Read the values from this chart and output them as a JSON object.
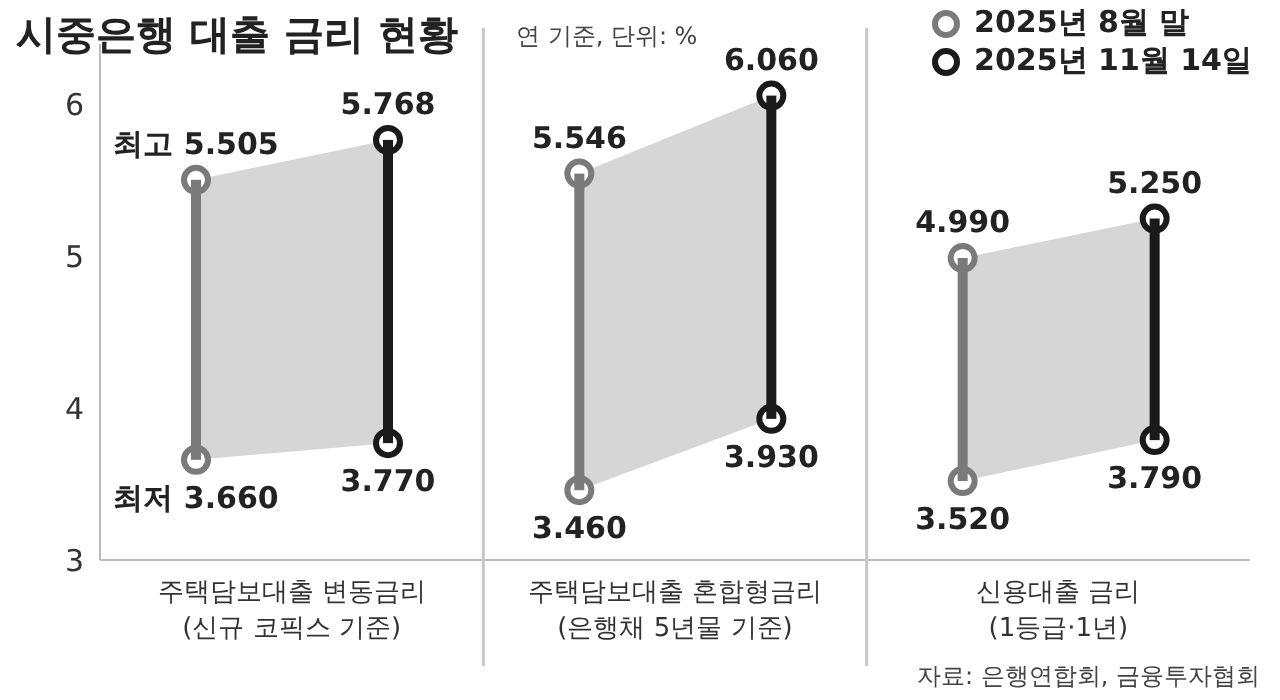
{
  "chart_data": {
    "type": "bar",
    "title": "시중은행 대출 금리 현황",
    "subtitle": "연 기준, 단위: %",
    "categories": [
      "주택담보대출 변동금리\n(신규 코픽스 기준)",
      "주택담보대출 혼합형금리\n(은행채 5년물 기준)",
      "신용대출 금리\n(1등급·1년)"
    ],
    "series": [
      {
        "name": "2025년 8월 말",
        "color": "#7a7a7a",
        "base": [
          3.66,
          3.46,
          3.52
        ],
        "values": [
          1.845,
          2.086,
          1.47
        ]
      },
      {
        "name": "2025년 11월 14일",
        "color": "#1a1a1a",
        "base": [
          3.77,
          3.93,
          3.79
        ],
        "values": [
          1.998,
          2.13,
          1.46
        ]
      }
    ],
    "ylim": [
      3,
      6.4
    ],
    "yticks": [
      3,
      4,
      5,
      6
    ],
    "legend": "top right",
    "marker": "circle",
    "annotations": [
      "최고 5.505",
      "최저 3.660",
      "5.768",
      "3.770",
      "5.546",
      "3.460",
      "6.060",
      "3.930",
      "4.990",
      "3.520",
      "5.250",
      "3.790",
      "자료: 은행연합회, 금융투자협회"
    ]
  }
}
